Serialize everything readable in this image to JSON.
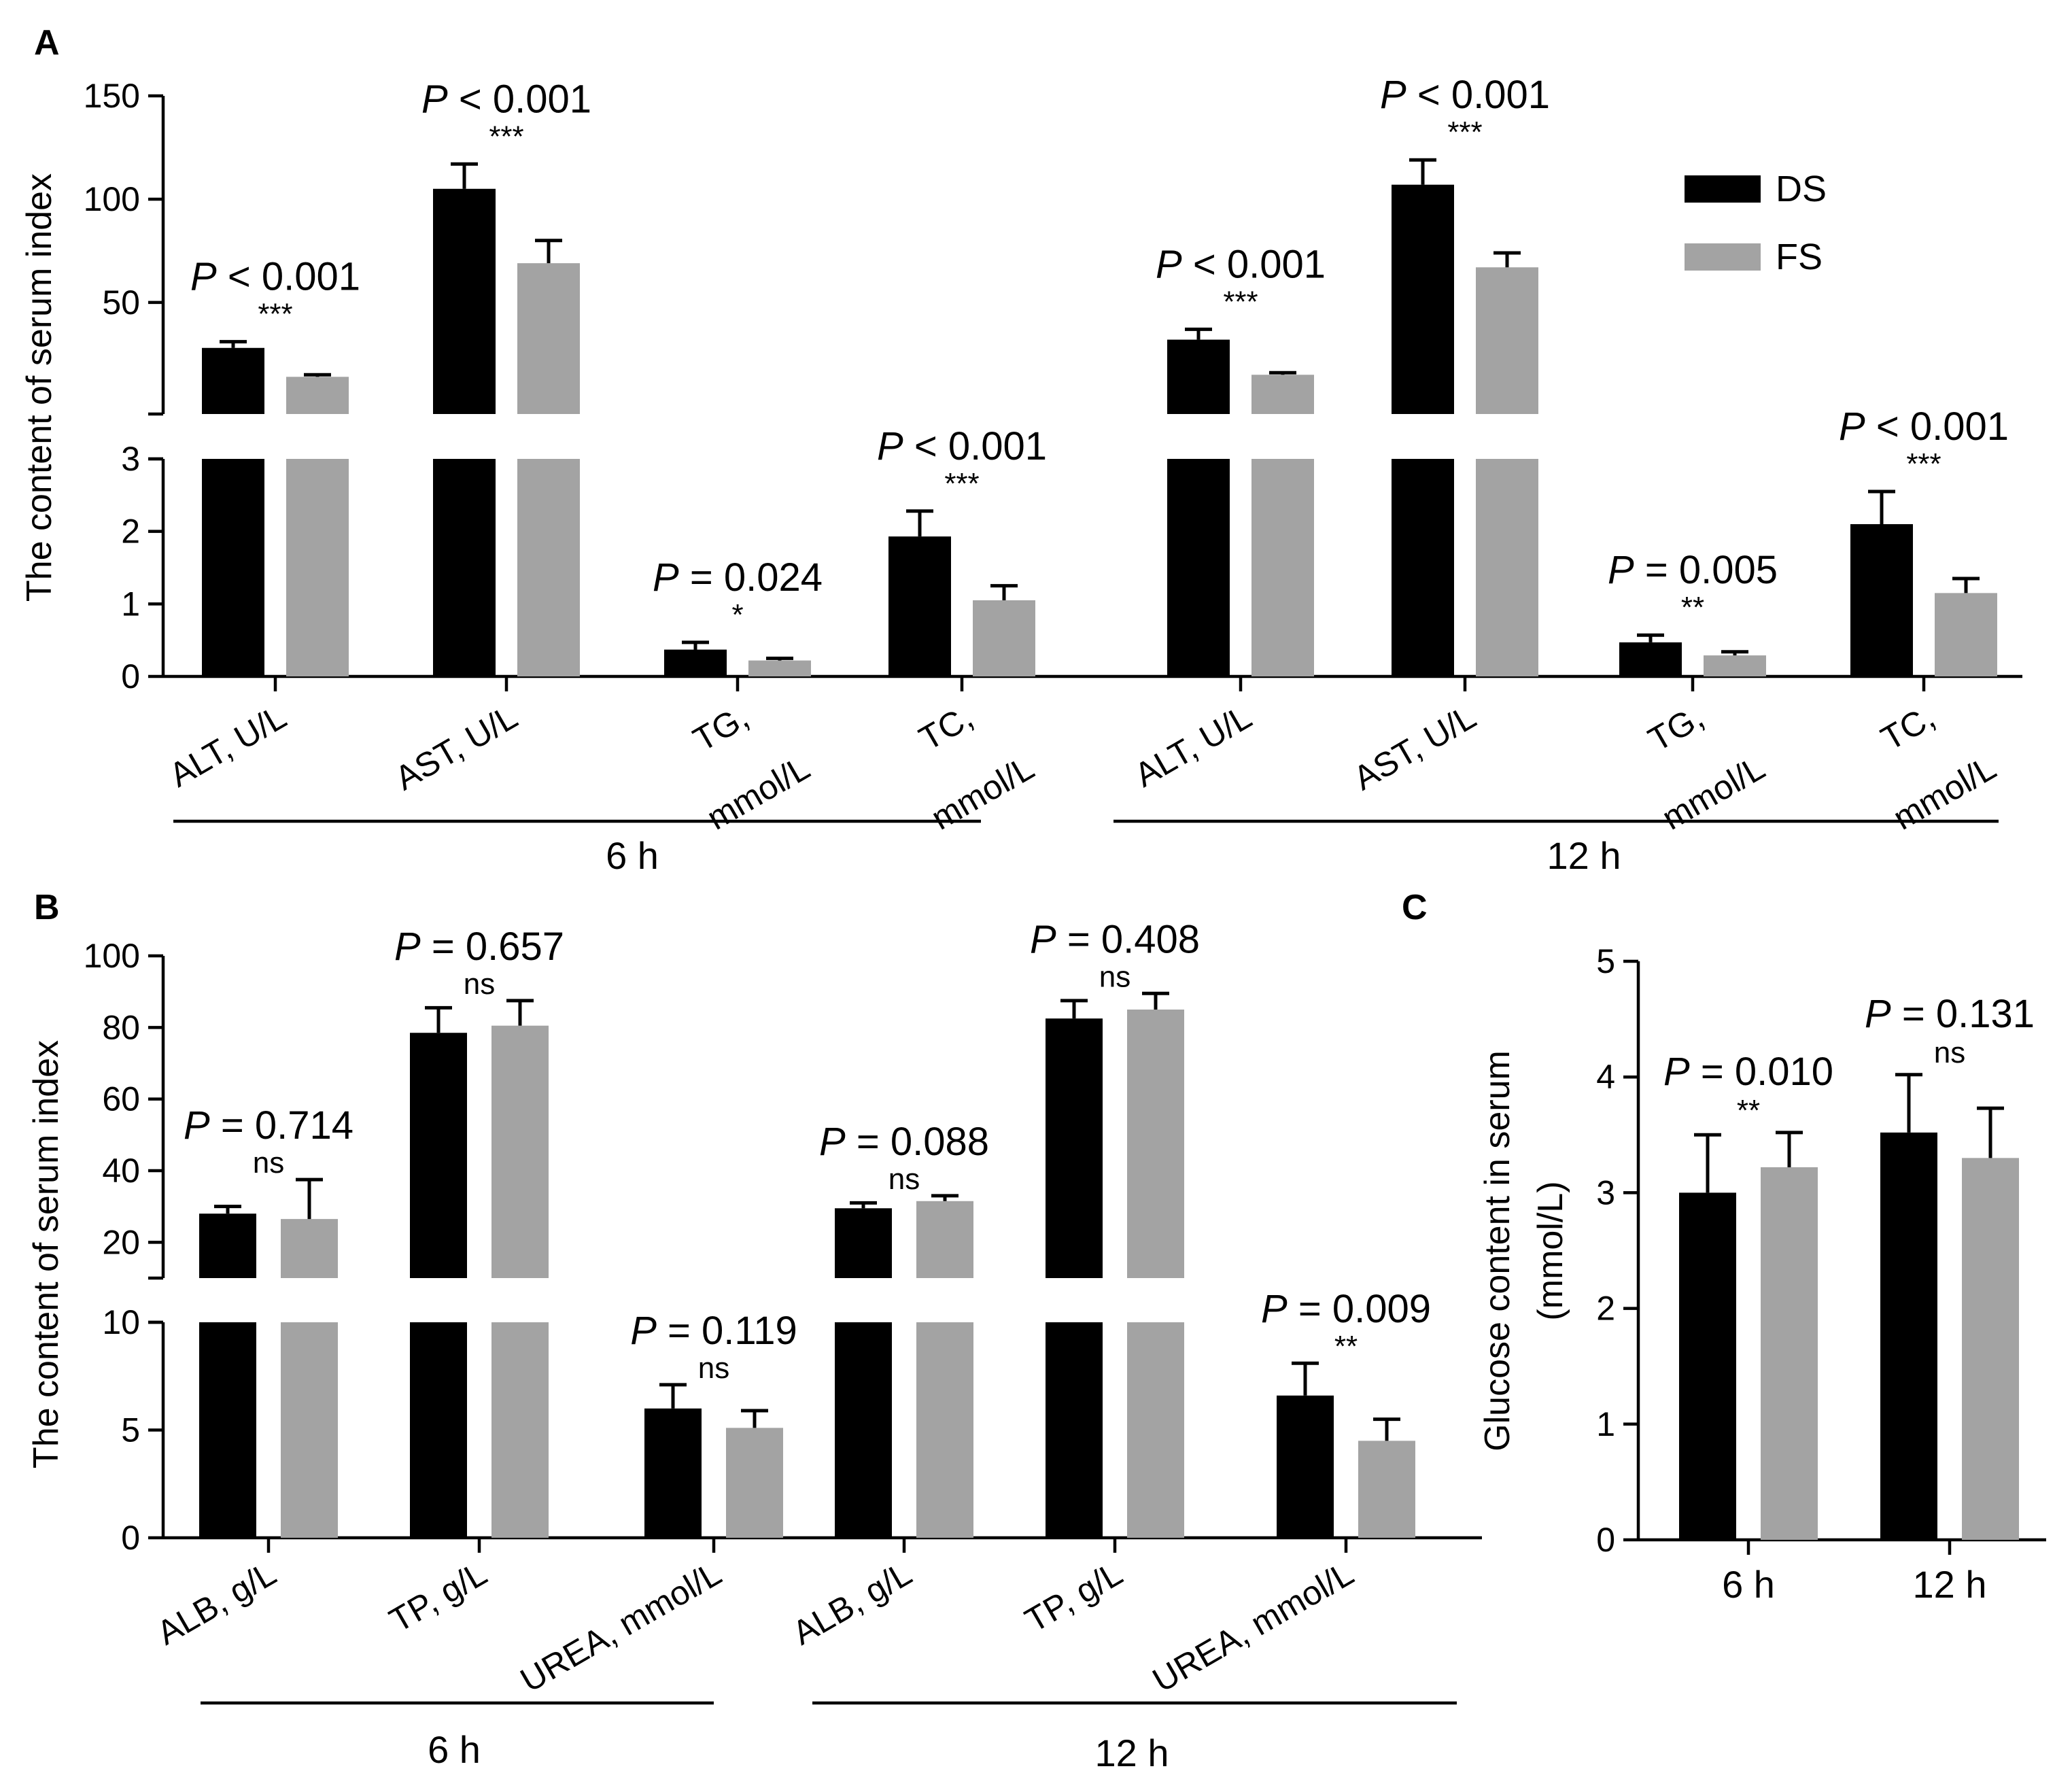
{
  "colors": {
    "DS": "#000000",
    "FS": "#a3a3a3"
  },
  "legend": [
    {
      "name": "DS"
    },
    {
      "name": "FS"
    }
  ],
  "chart_data": [
    {
      "panel": "A",
      "type": "bar",
      "ylabel": "The content of serum index",
      "y_axis_segments": [
        {
          "range": [
            0,
            3
          ],
          "ticks": [
            "0",
            "1",
            "2",
            "3"
          ]
        },
        {
          "range": [
            -4,
            150
          ],
          "ticks": [
            "50",
            "100",
            "150"
          ]
        }
      ],
      "groups": [
        {
          "label": "6 h",
          "items": [
            {
              "label": "ALT, U/L",
              "DS": {
                "value": 28,
                "err": 3
              },
              "FS": {
                "value": 14,
                "err": 1
              },
              "p": "< 0.001",
              "sig": "***"
            },
            {
              "label": "AST, U/L",
              "DS": {
                "value": 105,
                "err": 12
              },
              "FS": {
                "value": 69,
                "err": 11
              },
              "p": "< 0.001",
              "sig": "***"
            },
            {
              "label": "TG, mmol/L",
              "DS": {
                "value": 0.37,
                "err": 0.1
              },
              "FS": {
                "value": 0.22,
                "err": 0.03
              },
              "p": "= 0.024",
              "sig": "*"
            },
            {
              "label": "TC, mmol/L",
              "DS": {
                "value": 1.93,
                "err": 0.35
              },
              "FS": {
                "value": 1.05,
                "err": 0.2
              },
              "p": "< 0.001",
              "sig": "***"
            }
          ]
        },
        {
          "label": "12 h",
          "items": [
            {
              "label": "ALT, U/L",
              "DS": {
                "value": 32,
                "err": 5
              },
              "FS": {
                "value": 15,
                "err": 1
              },
              "p": "< 0.001",
              "sig": "***"
            },
            {
              "label": "AST, U/L",
              "DS": {
                "value": 107,
                "err": 12
              },
              "FS": {
                "value": 67,
                "err": 7
              },
              "p": "< 0.001",
              "sig": "***"
            },
            {
              "label": "TG, mmol/L",
              "DS": {
                "value": 0.47,
                "err": 0.1
              },
              "FS": {
                "value": 0.29,
                "err": 0.05
              },
              "p": "= 0.005",
              "sig": "**"
            },
            {
              "label": "TC, mmol/L",
              "DS": {
                "value": 2.1,
                "err": 0.45
              },
              "FS": {
                "value": 1.15,
                "err": 0.2
              },
              "p": "< 0.001",
              "sig": "***"
            }
          ]
        }
      ]
    },
    {
      "panel": "B",
      "type": "bar",
      "ylabel": "The content of serum index",
      "y_axis_segments": [
        {
          "range": [
            0,
            10
          ],
          "ticks": [
            "0",
            "5",
            "10"
          ]
        },
        {
          "range": [
            10,
            100
          ],
          "ticks": [
            "20",
            "40",
            "60",
            "80",
            "100"
          ]
        }
      ],
      "groups": [
        {
          "label": "6 h",
          "items": [
            {
              "label": "ALB, g/L",
              "DS": {
                "value": 28,
                "err": 2
              },
              "FS": {
                "value": 26.5,
                "err": 11
              },
              "p": "= 0.714",
              "sig": "ns"
            },
            {
              "label": "TP, g/L",
              "DS": {
                "value": 78.5,
                "err": 7
              },
              "FS": {
                "value": 80.5,
                "err": 7
              },
              "p": "= 0.657",
              "sig": "ns"
            },
            {
              "label": "UREA, mmol/L",
              "DS": {
                "value": 6,
                "err": 1.1
              },
              "FS": {
                "value": 5.1,
                "err": 0.8
              },
              "p": "= 0.119",
              "sig": "ns"
            }
          ]
        },
        {
          "label": "12 h",
          "items": [
            {
              "label": "ALB, g/L",
              "DS": {
                "value": 29.5,
                "err": 1.5
              },
              "FS": {
                "value": 31.5,
                "err": 1.5
              },
              "p": "= 0.088",
              "sig": "ns"
            },
            {
              "label": "TP, g/L",
              "DS": {
                "value": 82.5,
                "err": 5
              },
              "FS": {
                "value": 85,
                "err": 4.5
              },
              "p": "= 0.408",
              "sig": "ns"
            },
            {
              "label": "UREA, mmol/L",
              "DS": {
                "value": 6.6,
                "err": 1.5
              },
              "FS": {
                "value": 4.5,
                "err": 1
              },
              "p": "= 0.009",
              "sig": "**"
            }
          ]
        }
      ]
    },
    {
      "panel": "C",
      "type": "bar",
      "ylabel": "Glucose content in serum (mmol/L)",
      "ylabel_lines": [
        "Glucose content in serum",
        "(mmol/L)"
      ],
      "ylim": [
        0,
        5
      ],
      "ticks": [
        "0",
        "1",
        "2",
        "3",
        "4",
        "5"
      ],
      "groups": [
        {
          "label": "6 h",
          "DS": {
            "value": 3.0,
            "err": 0.5
          },
          "FS": {
            "value": 3.22,
            "err": 0.3
          },
          "p": "= 0.010",
          "sig": "**"
        },
        {
          "label": "12 h",
          "DS": {
            "value": 3.52,
            "err": 0.5
          },
          "FS": {
            "value": 3.3,
            "err": 0.43
          },
          "p": "= 0.131",
          "sig": "ns"
        }
      ]
    }
  ]
}
